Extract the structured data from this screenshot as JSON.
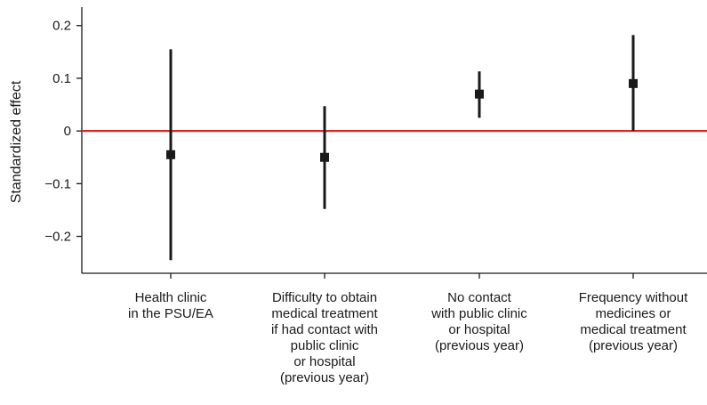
{
  "chart_data": {
    "type": "scatter",
    "ylabel": "Standardized effect",
    "ylim": [
      -0.27,
      0.235
    ],
    "yticks": [
      {
        "value": 0.2,
        "label": "0.2"
      },
      {
        "value": 0.1,
        "label": "0.1"
      },
      {
        "value": 0,
        "label": "0"
      },
      {
        "value": -0.1,
        "label": "−0.1"
      },
      {
        "value": -0.2,
        "label": "−0.2"
      }
    ],
    "reference_line": {
      "y": 0,
      "color": "#e8231e"
    },
    "marker_color": "#1a1a1a",
    "categories": [
      {
        "lines": [
          "Health clinic",
          "in the PSU/EA"
        ]
      },
      {
        "lines": [
          "Difficulty to obtain",
          "medical treatment",
          "if had contact with",
          "public clinic",
          "or hospital",
          "(previous year)"
        ]
      },
      {
        "lines": [
          "No contact",
          "with public clinic",
          "or hospital",
          "(previous year)"
        ]
      },
      {
        "lines": [
          "Frequency without",
          "medicines or",
          "medical treatment",
          "(previous year)"
        ]
      }
    ],
    "points": [
      {
        "estimate": -0.045,
        "lower": -0.245,
        "upper": 0.155
      },
      {
        "estimate": -0.05,
        "lower": -0.148,
        "upper": 0.047
      },
      {
        "estimate": 0.07,
        "lower": 0.025,
        "upper": 0.113
      },
      {
        "estimate": 0.09,
        "lower": 0.0,
        "upper": 0.182
      }
    ]
  }
}
